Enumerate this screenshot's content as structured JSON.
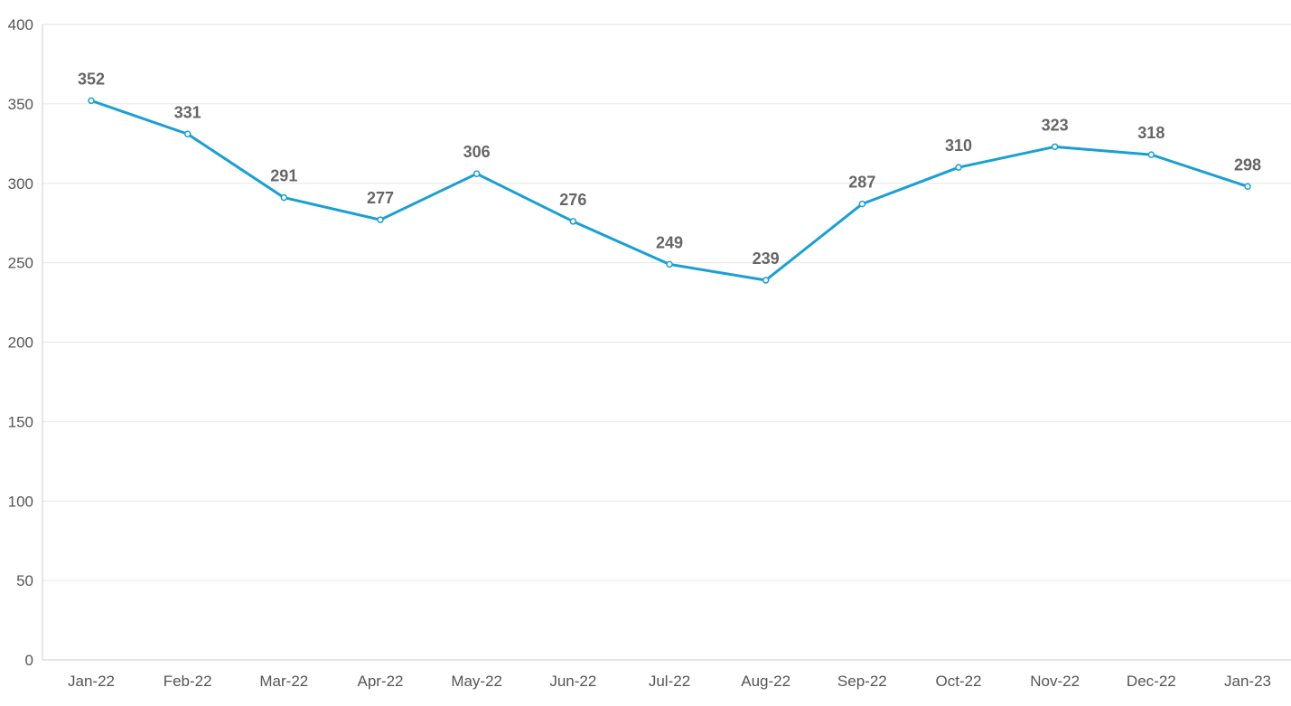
{
  "chart_data": {
    "type": "line",
    "categories": [
      "Jan-22",
      "Feb-22",
      "Mar-22",
      "Apr-22",
      "May-22",
      "Jun-22",
      "Jul-22",
      "Aug-22",
      "Sep-22",
      "Oct-22",
      "Nov-22",
      "Dec-22",
      "Jan-23"
    ],
    "series": [
      {
        "values": [
          352,
          331,
          291,
          277,
          306,
          276,
          249,
          239,
          287,
          310,
          323,
          318,
          298
        ],
        "color": "#1a9fd4"
      }
    ],
    "title": "",
    "xlabel": "",
    "ylabel": "",
    "ylim": [
      0,
      400
    ],
    "yticks": [
      0,
      50,
      100,
      150,
      200,
      250,
      300,
      350,
      400
    ],
    "grid": true,
    "data_labels": true,
    "legend": "none"
  }
}
